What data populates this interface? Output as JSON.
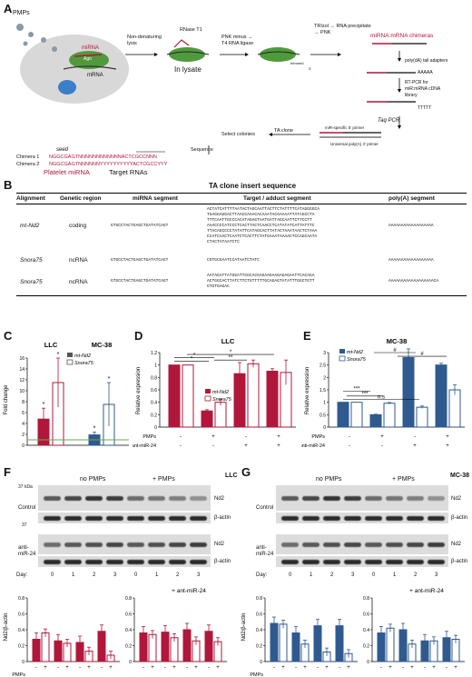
{
  "panels": {
    "A": "A",
    "B": "B",
    "C": "C",
    "D": "D",
    "E": "E",
    "F": "F",
    "G": "G"
  },
  "panelA": {
    "pmps": "PMPs",
    "mirna": "miRNA",
    "ago": "Ago",
    "mrna": "mRNA",
    "step1": "Non-denaturing\nlysis",
    "rnase": "RNase T1",
    "inlysate": "In lysate",
    "pnk": "PNK minus →\nT4 RNA ligase",
    "trizol": "TRIzol → RNA precipitate\n→ PNK",
    "chimeras": "miRNA:mRNA chimeras",
    "polya": "poly(dA) tail adapters",
    "aaaaa": "AAAAA",
    "rtpcr": "RT-PCR for\nmiR:mRNA cDNA\nlibrary",
    "tttt": "TTTTT",
    "taq": "Taq PCR",
    "mirprimer": "miR-specific 5' primer",
    "uniprimer": "Universal poly(A) 3' primer",
    "taclone": "TA clone",
    "select": "Select colonies",
    "sequence": "Sequence",
    "seed": "seed",
    "chimera1": "Chimera 1",
    "chimera2": "Chimera 2",
    "seq1": "NGGCGAGTNNNNNNNNNNNNACTCGCCNNN",
    "seq2": "NGGCGAGTNNNNNNYYYYYYYYYYACTCGCCYYY",
    "platelet": "Platelet miRNA",
    "target": "Target RNAs",
    "trimmed": "trimmed",
    "p3": "3'"
  },
  "panelB": {
    "title": "TA clone insert sequence",
    "headers": [
      "Alignment",
      "Genetic region",
      "miRNA segment",
      "Target / adduct segment",
      "poly(A) segment"
    ],
    "rows": [
      {
        "alignment": "mt-Nd2",
        "region": "coding",
        "mirna": "GTGCCTACTGAGCTGATATCAGT",
        "target": "ACTATCATTTTAATACTAGCAATTACTTCTATTTTCATAGGGGCA\nTGAGGAGGACTTAACCAAACACAAATACGAAAATTATAGCCTA\nTTTCAATTGCCCACATAGAGTAATGATTAGCAATTCTTCCTT\nAAACCCCATCCCTCACTTACTCAACCTCATATATCATTATTTC\nTTACAGCCCCTATATTCATAGCACTTATACTAAATAACTCTAAA\nCCATCAACTCAATCTCACTTCTATGAAATAAAACTCCAGCAATA\nCTACTATAATCTC",
        "polya": "AAAAAAAAAAAAAAAAAA"
      },
      {
        "alignment": "Snora75",
        "region": "ncRNA",
        "mirna": "GTGCCTACTGAGCTGATATCAGT",
        "target": "CGTGCGAATCCATAATCTATC",
        "polya": "AAAAAAAAAAAAAAAAAA"
      },
      {
        "alignment": "Snora75",
        "region": "ncRNA",
        "mirna": "GTGCCTACTGAGCTGATATCAGT",
        "target": "AATAGATTATGGATTCGCACGAGAAGAAGAGAGAATTCACAGA\nACTGGCACTTATCTTCTGTTTTTGCAGAGTATATTTGGCTGTT\nGTGTGAGAC",
        "polya": "AAAAAAAAAAAAAAAAAACA"
      }
    ]
  },
  "panelC": {
    "llc": "LLC",
    "mc38": "MC-38",
    "ylabel": "Fold change",
    "legend": [
      "mt-Nd2",
      "Snora75"
    ],
    "star": "*",
    "yticks": [
      "0",
      "2",
      "4",
      "6",
      "8",
      "10",
      "12",
      "14",
      "16"
    ]
  },
  "panelD": {
    "title": "LLC",
    "ylabel": "Relative expression",
    "legend": [
      "mt-Nd2",
      "Snora75"
    ],
    "yticks": [
      "0",
      "0.2",
      "0.4",
      "0.6",
      "0.8",
      "1",
      "1.2"
    ],
    "rowlabels": [
      "PMPs",
      "ant-miR-24"
    ],
    "pmps": [
      "-",
      "+",
      "-",
      "+"
    ],
    "anti": [
      "-",
      "-",
      "+",
      "+"
    ],
    "sig": [
      "*",
      "*",
      "**",
      "*"
    ]
  },
  "panelE": {
    "title": "MC-38",
    "ylabel": "Relative expression",
    "legend": [
      "mt-Nd2",
      "Snora75"
    ],
    "yticks": [
      "0",
      "0.5",
      "1",
      "1.5",
      "2",
      "2.5",
      "3"
    ],
    "rowlabels": [
      "PMPs",
      "anti-miR-24"
    ],
    "pmps": [
      "-",
      "+",
      "-",
      "+"
    ],
    "anti": [
      "-",
      "-",
      "+",
      "+"
    ],
    "sig": [
      "***",
      "***",
      "n.s",
      "#",
      "#"
    ]
  },
  "panelF": {
    "title": "LLC",
    "kda37": "37 kDa",
    "kda37b": "37",
    "nopmps": "no PMPs",
    "pmps": "+ PMPs",
    "control": "Control",
    "anti": "anti-\nmiR-24",
    "nd2": "Nd2",
    "actin": "β-actin",
    "day": "Day:",
    "days": [
      "0",
      "1",
      "2",
      "3",
      "0",
      "1",
      "2",
      "3"
    ],
    "ylabel": "Nd2/β-actin",
    "antimir": "+ ant-miR-24",
    "yticks": [
      "0",
      "0.2",
      "0.4",
      "0.6",
      "0.8"
    ],
    "pm": [
      "-",
      "+",
      "-",
      "+",
      "-",
      "+",
      "-",
      "+"
    ],
    "pmpsrow": "PMPs"
  },
  "panelG": {
    "title": "MC-38",
    "nopmps": "no PMPs",
    "pmps": "+ PMPs",
    "control": "Control",
    "anti": "anti-\nmiR-24",
    "nd2": "Nd2",
    "actin": "β-actin",
    "day": "Day:",
    "days": [
      "0",
      "1",
      "2",
      "3",
      "0",
      "1",
      "2",
      "3"
    ],
    "ylabel": "Nd2/β-actin",
    "antimir": "+ ant-miR-24",
    "yticks": [
      "0",
      "0.2",
      "0.4",
      "0.6",
      "0.8"
    ],
    "pm": [
      "-",
      "+",
      "-",
      "+",
      "-",
      "+",
      "-",
      "+"
    ],
    "pmpsrow": "PMPs"
  },
  "colors": {
    "red": "#b0173a",
    "blue": "#2f5a8f",
    "green": "#6aa84f"
  },
  "chart_data": [
    {
      "id": "C",
      "type": "bar",
      "categories": [
        "LLC",
        "MC-38"
      ],
      "series": [
        {
          "name": "mt-Nd2",
          "values": [
            4.8,
            1.9
          ],
          "err": [
            2.0,
            0.5
          ]
        },
        {
          "name": "Snora75",
          "values": [
            11.5,
            7.5
          ],
          "err": [
            4.5,
            4.0
          ]
        }
      ],
      "ylim": [
        0,
        16
      ],
      "reference": 1
    },
    {
      "id": "D",
      "type": "bar",
      "categories": [
        "1",
        "2",
        "3",
        "4"
      ],
      "series": [
        {
          "name": "mt-Nd2",
          "values": [
            1.0,
            0.26,
            0.86,
            0.9
          ],
          "err": [
            0,
            0.02,
            0.18,
            0.04
          ]
        },
        {
          "name": "Snora75",
          "values": [
            1.0,
            0.4,
            1.02,
            0.88
          ],
          "err": [
            0,
            0.05,
            0.06,
            0.2
          ]
        }
      ],
      "ylim": [
        0,
        1.2
      ]
    },
    {
      "id": "E",
      "type": "bar",
      "categories": [
        "1",
        "2",
        "3",
        "4"
      ],
      "series": [
        {
          "name": "mt-Nd2",
          "values": [
            1.0,
            0.5,
            2.8,
            2.5
          ],
          "err": [
            0,
            0.02,
            0.35,
            0.07
          ]
        },
        {
          "name": "Snora75",
          "values": [
            1.0,
            0.96,
            0.8,
            1.5
          ],
          "err": [
            0,
            0.03,
            0.05,
            0.2
          ]
        }
      ],
      "ylim": [
        0,
        3
      ]
    },
    {
      "id": "F-left",
      "type": "bar",
      "categories": [
        "0",
        "1",
        "2",
        "3"
      ],
      "series": [
        {
          "name": "-",
          "values": [
            0.28,
            0.26,
            0.24,
            0.38
          ]
        },
        {
          "name": "+",
          "values": [
            0.36,
            0.23,
            0.13,
            0.08
          ]
        }
      ],
      "ylim": [
        0,
        0.8
      ]
    },
    {
      "id": "F-right",
      "type": "bar",
      "categories": [
        "0",
        "1",
        "2",
        "3"
      ],
      "series": [
        {
          "name": "-",
          "values": [
            0.36,
            0.37,
            0.4,
            0.38
          ]
        },
        {
          "name": "+",
          "values": [
            0.34,
            0.3,
            0.26,
            0.25
          ]
        }
      ],
      "ylim": [
        0,
        0.8
      ]
    },
    {
      "id": "G-left",
      "type": "bar",
      "categories": [
        "0",
        "1",
        "2",
        "3"
      ],
      "series": [
        {
          "name": "-",
          "values": [
            0.48,
            0.36,
            0.45,
            0.45
          ]
        },
        {
          "name": "+",
          "values": [
            0.47,
            0.22,
            0.12,
            0.1
          ]
        }
      ],
      "ylim": [
        0,
        0.8
      ]
    },
    {
      "id": "G-right",
      "type": "bar",
      "categories": [
        "0",
        "1",
        "2",
        "3"
      ],
      "series": [
        {
          "name": "-",
          "values": [
            0.36,
            0.4,
            0.26,
            0.3
          ]
        },
        {
          "name": "+",
          "values": [
            0.42,
            0.22,
            0.26,
            0.28
          ]
        }
      ],
      "ylim": [
        0,
        0.8
      ]
    }
  ]
}
